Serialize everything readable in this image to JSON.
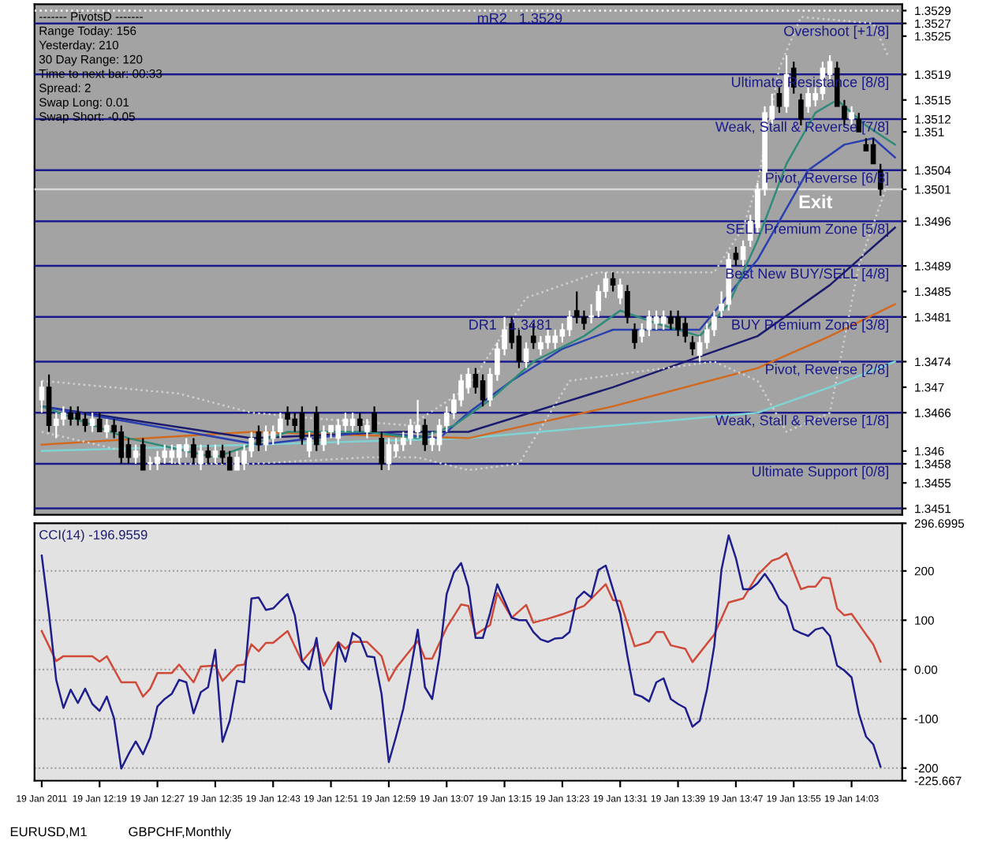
{
  "chart_data": [
    {
      "type": "candlestick",
      "x": [
        "2011-01-19T12:11",
        "2011-01-19T12:12",
        "2011-01-19T12:13",
        "2011-01-19T12:14",
        "2011-01-19T12:15",
        "2011-01-19T12:16",
        "2011-01-19T12:17",
        "2011-01-19T12:18",
        "2011-01-19T12:19",
        "2011-01-19T12:20",
        "2011-01-19T12:21",
        "2011-01-19T12:22",
        "2011-01-19T12:23",
        "2011-01-19T12:24",
        "2011-01-19T12:25",
        "2011-01-19T12:26",
        "2011-01-19T12:27",
        "2011-01-19T12:28",
        "2011-01-19T12:29",
        "2011-01-19T12:30",
        "2011-01-19T12:31",
        "2011-01-19T12:32",
        "2011-01-19T12:33",
        "2011-01-19T12:34",
        "2011-01-19T12:35",
        "2011-01-19T12:36",
        "2011-01-19T12:37",
        "2011-01-19T12:38",
        "2011-01-19T12:39",
        "2011-01-19T12:40",
        "2011-01-19T12:41",
        "2011-01-19T12:42",
        "2011-01-19T12:43",
        "2011-01-19T12:44",
        "2011-01-19T12:45",
        "2011-01-19T12:46",
        "2011-01-19T12:47",
        "2011-01-19T12:48",
        "2011-01-19T12:49",
        "2011-01-19T12:50",
        "2011-01-19T12:51",
        "2011-01-19T12:52",
        "2011-01-19T12:53",
        "2011-01-19T12:54",
        "2011-01-19T12:55",
        "2011-01-19T12:56",
        "2011-01-19T12:57",
        "2011-01-19T12:58",
        "2011-01-19T12:59",
        "2011-01-19T13:00",
        "2011-01-19T13:01",
        "2011-01-19T13:02",
        "2011-01-19T13:03",
        "2011-01-19T13:04",
        "2011-01-19T13:05",
        "2011-01-19T13:06",
        "2011-01-19T13:07",
        "2011-01-19T13:08",
        "2011-01-19T13:09",
        "2011-01-19T13:10",
        "2011-01-19T13:11",
        "2011-01-19T13:12",
        "2011-01-19T13:13",
        "2011-01-19T13:14",
        "2011-01-19T13:15",
        "2011-01-19T13:16",
        "2011-01-19T13:17",
        "2011-01-19T13:18",
        "2011-01-19T13:19",
        "2011-01-19T13:20",
        "2011-01-19T13:21",
        "2011-01-19T13:22",
        "2011-01-19T13:23",
        "2011-01-19T13:24",
        "2011-01-19T13:25",
        "2011-01-19T13:26",
        "2011-01-19T13:27",
        "2011-01-19T13:28",
        "2011-01-19T13:29",
        "2011-01-19T13:30",
        "2011-01-19T13:31",
        "2011-01-19T13:32",
        "2011-01-19T13:33",
        "2011-01-19T13:34",
        "2011-01-19T13:35",
        "2011-01-19T13:36",
        "2011-01-19T13:37",
        "2011-01-19T13:38",
        "2011-01-19T13:39",
        "2011-01-19T13:40",
        "2011-01-19T13:41",
        "2011-01-19T13:42",
        "2011-01-19T13:43",
        "2011-01-19T13:44",
        "2011-01-19T13:45",
        "2011-01-19T13:46",
        "2011-01-19T13:47",
        "2011-01-19T13:48",
        "2011-01-19T13:49",
        "2011-01-19T13:50",
        "2011-01-19T13:51",
        "2011-01-19T13:52",
        "2011-01-19T13:53",
        "2011-01-19T13:54",
        "2011-01-19T13:55",
        "2011-01-19T13:56",
        "2011-01-19T13:57",
        "2011-01-19T13:58",
        "2011-01-19T13:59",
        "2011-01-19T14:00",
        "2011-01-19T14:01",
        "2011-01-19T14:02",
        "2011-01-19T14:03",
        "2011-01-19T14:04",
        "2011-01-19T14:05",
        "2011-01-19T14:06",
        "2011-01-19T14:07"
      ],
      "ohlc": [
        [
          1.3468,
          1.3471,
          1.3466,
          1.347
        ],
        [
          1.347,
          1.3472,
          1.3463,
          1.3464
        ],
        [
          1.3464,
          1.3466,
          1.3462,
          1.3465
        ],
        [
          1.3465,
          1.3467,
          1.3464,
          1.3466
        ],
        [
          1.3466,
          1.3467,
          1.3464,
          1.3465
        ],
        [
          1.3466,
          1.3467,
          1.3464,
          1.3465
        ],
        [
          1.3465,
          1.3466,
          1.3463,
          1.3464
        ],
        [
          1.3464,
          1.3466,
          1.3463,
          1.3465
        ],
        [
          1.3465,
          1.3466,
          1.3463,
          1.3463
        ],
        [
          1.3463,
          1.3465,
          1.3462,
          1.3464
        ],
        [
          1.3464,
          1.3465,
          1.3462,
          1.3463
        ],
        [
          1.3463,
          1.3464,
          1.3458,
          1.3459
        ],
        [
          1.3461,
          1.3462,
          1.3458,
          1.3459
        ],
        [
          1.3459,
          1.3461,
          1.3458,
          1.346
        ],
        [
          1.3461,
          1.3462,
          1.3457,
          1.3457
        ],
        [
          1.3458,
          1.3459,
          1.3457,
          1.3458
        ],
        [
          1.3458,
          1.346,
          1.3457,
          1.3459
        ],
        [
          1.3459,
          1.3461,
          1.3458,
          1.346
        ],
        [
          1.3459,
          1.3461,
          1.3458,
          1.346
        ],
        [
          1.3459,
          1.3461,
          1.3458,
          1.3461
        ],
        [
          1.346,
          1.3462,
          1.3459,
          1.3461
        ],
        [
          1.3461,
          1.3462,
          1.3458,
          1.3459
        ],
        [
          1.3458,
          1.3461,
          1.3457,
          1.346
        ],
        [
          1.346,
          1.3461,
          1.3458,
          1.3459
        ],
        [
          1.3459,
          1.3461,
          1.3458,
          1.346
        ],
        [
          1.346,
          1.3461,
          1.3458,
          1.3459
        ],
        [
          1.3459,
          1.346,
          1.3457,
          1.3457
        ],
        [
          1.3457,
          1.346,
          1.3457,
          1.3459
        ],
        [
          1.3458,
          1.3461,
          1.3457,
          1.346
        ],
        [
          1.346,
          1.3463,
          1.3459,
          1.3462
        ],
        [
          1.3463,
          1.3464,
          1.346,
          1.3461
        ],
        [
          1.3461,
          1.3464,
          1.346,
          1.3463
        ],
        [
          1.3462,
          1.3464,
          1.3461,
          1.3463
        ],
        [
          1.3463,
          1.3466,
          1.3462,
          1.3465
        ],
        [
          1.3466,
          1.3467,
          1.3464,
          1.3465
        ],
        [
          1.3465,
          1.3466,
          1.3463,
          1.3464
        ],
        [
          1.3466,
          1.3467,
          1.3461,
          1.3462
        ],
        [
          1.346,
          1.3463,
          1.3459,
          1.3462
        ],
        [
          1.3466,
          1.3467,
          1.346,
          1.3461
        ],
        [
          1.3461,
          1.3464,
          1.346,
          1.3463
        ],
        [
          1.3463,
          1.3464,
          1.3462,
          1.3464
        ],
        [
          1.3462,
          1.3465,
          1.3461,
          1.3464
        ],
        [
          1.3464,
          1.3466,
          1.3463,
          1.3465
        ],
        [
          1.3464,
          1.3466,
          1.3463,
          1.3465
        ],
        [
          1.3465,
          1.3466,
          1.3463,
          1.3464
        ],
        [
          1.3463,
          1.3465,
          1.3462,
          1.3464
        ],
        [
          1.3466,
          1.3467,
          1.3463,
          1.3463
        ],
        [
          1.3462,
          1.3463,
          1.3457,
          1.3458
        ],
        [
          1.3458,
          1.3462,
          1.3457,
          1.3461
        ],
        [
          1.346,
          1.3462,
          1.3459,
          1.3461
        ],
        [
          1.3461,
          1.3463,
          1.346,
          1.3462
        ],
        [
          1.3462,
          1.3465,
          1.3461,
          1.3464
        ],
        [
          1.3463,
          1.3468,
          1.3462,
          1.3464
        ],
        [
          1.3464,
          1.3465,
          1.346,
          1.3461
        ],
        [
          1.3461,
          1.3463,
          1.346,
          1.3462
        ],
        [
          1.3461,
          1.3465,
          1.346,
          1.3464
        ],
        [
          1.3464,
          1.3467,
          1.3463,
          1.3466
        ],
        [
          1.3466,
          1.3469,
          1.3465,
          1.3468
        ],
        [
          1.3468,
          1.3472,
          1.3467,
          1.3471
        ],
        [
          1.347,
          1.3473,
          1.3469,
          1.3472
        ],
        [
          1.3472,
          1.3473,
          1.3469,
          1.347
        ],
        [
          1.3471,
          1.3472,
          1.3467,
          1.3468
        ],
        [
          1.3468,
          1.3473,
          1.3467,
          1.3472
        ],
        [
          1.3472,
          1.3477,
          1.3471,
          1.3476
        ],
        [
          1.3476,
          1.3481,
          1.3475,
          1.3479
        ],
        [
          1.348,
          1.3481,
          1.3476,
          1.3477
        ],
        [
          1.3478,
          1.3479,
          1.3473,
          1.3474
        ],
        [
          1.3474,
          1.3477,
          1.3473,
          1.3476
        ],
        [
          1.3478,
          1.348,
          1.3476,
          1.3477
        ],
        [
          1.3476,
          1.3478,
          1.3475,
          1.3477
        ],
        [
          1.3477,
          1.3479,
          1.3476,
          1.3478
        ],
        [
          1.3477,
          1.3479,
          1.3476,
          1.3478
        ],
        [
          1.3478,
          1.348,
          1.3477,
          1.3479
        ],
        [
          1.3479,
          1.3482,
          1.3478,
          1.3481
        ],
        [
          1.3482,
          1.3485,
          1.348,
          1.3481
        ],
        [
          1.3481,
          1.3482,
          1.3479,
          1.348
        ],
        [
          1.3481,
          1.3483,
          1.348,
          1.3481
        ],
        [
          1.3482,
          1.3486,
          1.3481,
          1.3485
        ],
        [
          1.3485,
          1.3488,
          1.3484,
          1.3487
        ],
        [
          1.3487,
          1.3488,
          1.3485,
          1.3486
        ],
        [
          1.3484,
          1.3487,
          1.3483,
          1.3486
        ],
        [
          1.3485,
          1.3486,
          1.348,
          1.3481
        ],
        [
          1.3479,
          1.348,
          1.3476,
          1.3477
        ],
        [
          1.3478,
          1.348,
          1.3477,
          1.3479
        ],
        [
          1.3479,
          1.3482,
          1.3478,
          1.3481
        ],
        [
          1.348,
          1.3482,
          1.3479,
          1.3481
        ],
        [
          1.348,
          1.3482,
          1.3479,
          1.3481
        ],
        [
          1.3481,
          1.3482,
          1.3479,
          1.348
        ],
        [
          1.3481,
          1.3482,
          1.3478,
          1.3479
        ],
        [
          1.348,
          1.3481,
          1.3477,
          1.3478
        ],
        [
          1.3477,
          1.3478,
          1.3475,
          1.3476
        ],
        [
          1.3475,
          1.3478,
          1.3474,
          1.3477
        ],
        [
          1.3477,
          1.348,
          1.3476,
          1.3479
        ],
        [
          1.3479,
          1.3482,
          1.3478,
          1.3481
        ],
        [
          1.3482,
          1.3485,
          1.3481,
          1.3483
        ],
        [
          1.3483,
          1.3491,
          1.3482,
          1.349
        ],
        [
          1.3491,
          1.3492,
          1.3489,
          1.349
        ],
        [
          1.349,
          1.3493,
          1.3489,
          1.3492
        ],
        [
          1.3493,
          1.3497,
          1.3492,
          1.3496
        ],
        [
          1.3495,
          1.3502,
          1.3494,
          1.3501
        ],
        [
          1.3501,
          1.3514,
          1.35,
          1.3513
        ],
        [
          1.3512,
          1.3516,
          1.3511,
          1.3514
        ],
        [
          1.3516,
          1.3517,
          1.3513,
          1.3514
        ],
        [
          1.3514,
          1.3522,
          1.3513,
          1.3519
        ],
        [
          1.352,
          1.3521,
          1.3516,
          1.3517
        ],
        [
          1.3515,
          1.3516,
          1.3511,
          1.3512
        ],
        [
          1.3514,
          1.3517,
          1.3513,
          1.3516
        ],
        [
          1.3515,
          1.3517,
          1.3514,
          1.3516
        ],
        [
          1.3516,
          1.3521,
          1.3515,
          1.352
        ],
        [
          1.3519,
          1.3522,
          1.3518,
          1.3521
        ],
        [
          1.352,
          1.3521,
          1.3514,
          1.3514
        ],
        [
          1.3514,
          1.3515,
          1.3511,
          1.3512
        ],
        [
          1.3512,
          1.3514,
          1.3511,
          1.3513
        ],
        [
          1.3512,
          1.3513,
          1.351,
          1.351
        ],
        [
          1.3508,
          1.3509,
          1.3507,
          1.3507
        ],
        [
          1.3508,
          1.3509,
          1.3505,
          1.3505
        ],
        [
          1.3504,
          1.3505,
          1.35,
          1.3501
        ]
      ],
      "colors": [
        "#ffffff",
        "#000000",
        "#ffffff",
        "#ffffff",
        "#000000",
        "#000000",
        "#000000",
        "#ffffff",
        "#000000",
        "#ffffff",
        "#000000",
        "#000000",
        "#000000",
        "#ffffff",
        "#000000",
        "#ffffff",
        "#ffffff",
        "#ffffff",
        "#ffffff",
        "#ffffff",
        "#ffffff",
        "#000000",
        "#ffffff",
        "#000000",
        "#ffffff",
        "#000000",
        "#000000",
        "#ffffff",
        "#ffffff",
        "#ffffff",
        "#000000",
        "#ffffff",
        "#ffffff",
        "#ffffff",
        "#000000",
        "#000000",
        "#000000",
        "#ffffff",
        "#000000",
        "#ffffff",
        "#ffffff",
        "#ffffff",
        "#ffffff",
        "#ffffff",
        "#000000",
        "#ffffff",
        "#000000",
        "#000000",
        "#ffffff",
        "#ffffff",
        "#ffffff",
        "#ffffff",
        "#ffffff",
        "#000000",
        "#ffffff",
        "#ffffff",
        "#ffffff",
        "#ffffff",
        "#ffffff",
        "#ffffff",
        "#000000",
        "#000000",
        "#ffffff",
        "#ffffff",
        "#ffffff",
        "#000000",
        "#000000",
        "#ffffff",
        "#000000",
        "#ffffff",
        "#ffffff",
        "#ffffff",
        "#ffffff",
        "#ffffff",
        "#000000",
        "#000000",
        "#ffffff",
        "#ffffff",
        "#ffffff",
        "#000000",
        "#ffffff",
        "#000000",
        "#000000",
        "#ffffff",
        "#ffffff",
        "#ffffff",
        "#ffffff",
        "#000000",
        "#000000",
        "#000000",
        "#000000",
        "#ffffff",
        "#ffffff",
        "#ffffff",
        "#ffffff",
        "#ffffff",
        "#000000",
        "#ffffff",
        "#ffffff",
        "#ffffff",
        "#ffffff",
        "#ffffff",
        "#000000",
        "#ffffff",
        "#000000",
        "#000000",
        "#ffffff",
        "#ffffff",
        "#ffffff",
        "#ffffff",
        "#000000",
        "#000000",
        "#ffffff",
        "#000000",
        "#000000",
        "#000000",
        "#000000"
      ],
      "series": [
        {
          "type": "line",
          "color": "#7fd3d3",
          "line_style": "solid",
          "x": [
            "2011-01-19T12:11",
            "2011-01-19T13:10",
            "2011-01-19T13:30",
            "2011-01-19T13:50",
            "2011-01-19T14:00",
            "2011-01-19T14:09"
          ],
          "values": [
            1.346,
            1.3462,
            1.3464,
            1.3466,
            1.347,
            1.3474
          ]
        },
        {
          "type": "line",
          "color": "#d2691e",
          "line_style": "solid",
          "x": [
            "2011-01-19T12:11",
            "2011-01-19T12:40",
            "2011-01-19T13:10",
            "2011-01-19T13:30",
            "2011-01-19T13:50",
            "2011-01-19T14:00",
            "2011-01-19T14:09"
          ],
          "values": [
            1.3461,
            1.3463,
            1.3462,
            1.3467,
            1.3473,
            1.3478,
            1.3483
          ]
        },
        {
          "type": "line",
          "color": "#1a1a6e",
          "line_style": "solid",
          "x": [
            "2011-01-19T12:11",
            "2011-01-19T12:40",
            "2011-01-19T13:00",
            "2011-01-19T13:10",
            "2011-01-19T13:30",
            "2011-01-19T13:50",
            "2011-01-19T14:00",
            "2011-01-19T14:09"
          ],
          "values": [
            1.3467,
            1.3462,
            1.3463,
            1.3463,
            1.347,
            1.3478,
            1.3486,
            1.3495
          ]
        },
        {
          "type": "line",
          "color": "#2a3fb0",
          "line_style": "solid",
          "x": [
            "2011-01-19T12:11",
            "2011-01-19T12:26",
            "2011-01-19T12:41",
            "2011-01-19T12:56",
            "2011-01-19T13:06",
            "2011-01-19T13:10",
            "2011-01-19T13:16",
            "2011-01-19T13:23",
            "2011-01-19T13:30",
            "2011-01-19T13:42",
            "2011-01-19T13:50",
            "2011-01-19T13:57",
            "2011-01-19T14:02",
            "2011-01-19T14:06",
            "2011-01-19T14:09"
          ],
          "values": [
            1.3467,
            1.3464,
            1.3461,
            1.3463,
            1.3462,
            1.3466,
            1.3471,
            1.3476,
            1.3479,
            1.3479,
            1.349,
            1.3504,
            1.3508,
            1.3509,
            1.3506
          ]
        },
        {
          "type": "line",
          "color": "#2e8b7a",
          "line_style": "solid",
          "x": [
            "2011-01-19T12:11",
            "2011-01-19T12:23",
            "2011-01-19T12:35",
            "2011-01-19T12:45",
            "2011-01-19T12:56",
            "2011-01-19T13:03",
            "2011-01-19T13:08",
            "2011-01-19T13:13",
            "2011-01-19T13:19",
            "2011-01-19T13:26",
            "2011-01-19T13:31",
            "2011-01-19T13:36",
            "2011-01-19T13:42",
            "2011-01-19T13:46",
            "2011-01-19T13:50",
            "2011-01-19T13:54",
            "2011-01-19T13:58",
            "2011-01-19T14:01",
            "2011-01-19T14:05",
            "2011-01-19T14:09"
          ],
          "values": [
            1.3467,
            1.3462,
            1.3459,
            1.3463,
            1.3463,
            1.3462,
            1.3464,
            1.3468,
            1.3474,
            1.3478,
            1.3482,
            1.348,
            1.3478,
            1.3483,
            1.3493,
            1.3505,
            1.3513,
            1.3515,
            1.3511,
            1.3508
          ]
        },
        {
          "type": "line",
          "color": "#d0d0d0",
          "line_style": "dotted",
          "x": [
            "2011-01-19T12:11",
            "2011-01-19T12:30",
            "2011-01-19T12:40",
            "2011-01-19T12:50",
            "2011-01-19T13:02",
            "2011-01-19T13:10",
            "2011-01-19T13:18",
            "2011-01-19T13:28",
            "2011-01-19T13:44",
            "2011-01-19T13:48",
            "2011-01-19T13:50",
            "2011-01-19T13:53",
            "2011-01-19T13:56",
            "2011-01-19T14:06",
            "2011-01-19T14:08"
          ],
          "values": [
            1.3471,
            1.3469,
            1.3466,
            1.3465,
            1.3464,
            1.347,
            1.3484,
            1.3488,
            1.3488,
            1.3495,
            1.3502,
            1.352,
            1.3528,
            1.3527,
            1.3522
          ]
        },
        {
          "type": "line",
          "color": "#d0d0d0",
          "line_style": "dotted",
          "x": [
            "2011-01-19T12:11",
            "2011-01-19T12:30",
            "2011-01-19T12:40",
            "2011-01-19T12:56",
            "2011-01-19T13:03",
            "2011-01-19T13:10",
            "2011-01-19T13:17",
            "2011-01-19T13:24",
            "2011-01-19T13:44",
            "2011-01-19T13:50",
            "2011-01-19T13:54",
            "2011-01-19T14:00",
            "2011-01-19T14:04",
            "2011-01-19T14:08"
          ],
          "values": [
            1.3463,
            1.3458,
            1.3458,
            1.3459,
            1.3459,
            1.3457,
            1.3458,
            1.3471,
            1.3474,
            1.3471,
            1.3463,
            1.3466,
            1.3489,
            1.3502
          ]
        }
      ],
      "ref_lines": [
        {
          "axis": "y",
          "value": 1.3529,
          "label": "mR2   1.3529",
          "color": "#ffffff",
          "line_style": "dotted"
        },
        {
          "axis": "y",
          "value": 1.3527,
          "label": "Overshoot [+1/8]",
          "color": "#1a1a8c",
          "line_style": "solid"
        },
        {
          "axis": "y",
          "value": 1.3519,
          "label": "Ultimate Resistance [8/8]",
          "color": "#1a1a8c",
          "line_style": "solid"
        },
        {
          "axis": "y",
          "value": 1.3512,
          "label": "Weak, Stall & Reverse [7/8]",
          "color": "#1a1a8c",
          "line_style": "solid"
        },
        {
          "axis": "y",
          "value": 1.3504,
          "label": "Pivot, Reverse [6/8]",
          "color": "#1a1a8c",
          "line_style": "solid"
        },
        {
          "axis": "y",
          "value": 1.3501,
          "label": null,
          "color": "#d8d8d8",
          "line_style": "solid"
        },
        {
          "axis": "y",
          "value": 1.3496,
          "label": "SELL Premium Zone [5/8]",
          "color": "#1a1a8c",
          "line_style": "solid"
        },
        {
          "axis": "y",
          "value": 1.3489,
          "label": "Best New BUY/SELL [4/8]",
          "color": "#1a1a8c",
          "line_style": "solid"
        },
        {
          "axis": "y",
          "value": 1.3481,
          "label": "BUY Premium Zone [3/8]",
          "color": "#1a1a8c",
          "line_style": "solid"
        },
        {
          "axis": "y",
          "value": 1.3474,
          "label": "Pivot, Reverse [2/8]",
          "color": "#1a1a8c",
          "line_style": "solid"
        },
        {
          "axis": "y",
          "value": 1.3466,
          "label": "Weak, Stall & Reverse [1/8]",
          "color": "#1a1a8c",
          "line_style": "solid"
        },
        {
          "axis": "y",
          "value": 1.3458,
          "label": "Ultimate Support [0/8]",
          "color": "#1a1a8c",
          "line_style": "solid"
        },
        {
          "axis": "y",
          "value": 1.3451,
          "label": null,
          "color": "#1a1a8c",
          "line_style": "solid"
        }
      ],
      "annotations": [
        {
          "text": "DR1   1.3481",
          "x": "2011-01-19T13:10",
          "y": 1.3481
        },
        "------- PivotsD -------",
        "Range Today: 156",
        "Yesterday: 210",
        "30 Day Range: 120",
        "Time to next bar: 00:33",
        "Spread: 2",
        "Swap Long: 0.01",
        "Swap Short: -0.05",
        "Exit"
      ],
      "xlim": [
        "2011-01-19T12:10",
        "2011-01-19T14:10"
      ],
      "ylim": [
        1.345,
        1.353
      ],
      "yticks": [
        1.3529,
        1.3527,
        1.3525,
        1.3519,
        1.3515,
        1.3512,
        1.351,
        1.3504,
        1.3501,
        1.3496,
        1.3489,
        1.3485,
        1.3481,
        1.3474,
        1.347,
        1.3466,
        1.346,
        1.3458,
        1.3455,
        1.3451
      ],
      "tick_labels": "y"
    },
    {
      "type": "line",
      "title": "CCI(14) -196.9559",
      "x": [
        "2011-01-19T12:11",
        "2011-01-19T12:12",
        "2011-01-19T12:13",
        "2011-01-19T12:14",
        "2011-01-19T12:15",
        "2011-01-19T12:16",
        "2011-01-19T12:17",
        "2011-01-19T12:18",
        "2011-01-19T12:19",
        "2011-01-19T12:20",
        "2011-01-19T12:21",
        "2011-01-19T12:22",
        "2011-01-19T12:23",
        "2011-01-19T12:24",
        "2011-01-19T12:25",
        "2011-01-19T12:26",
        "2011-01-19T12:27",
        "2011-01-19T12:28",
        "2011-01-19T12:29",
        "2011-01-19T12:30",
        "2011-01-19T12:31",
        "2011-01-19T12:32",
        "2011-01-19T12:33",
        "2011-01-19T12:34",
        "2011-01-19T12:35",
        "2011-01-19T12:36",
        "2011-01-19T12:37",
        "2011-01-19T12:38",
        "2011-01-19T12:39",
        "2011-01-19T12:40",
        "2011-01-19T12:41",
        "2011-01-19T12:42",
        "2011-01-19T12:43",
        "2011-01-19T12:44",
        "2011-01-19T12:45",
        "2011-01-19T12:46",
        "2011-01-19T12:47",
        "2011-01-19T12:48",
        "2011-01-19T12:49",
        "2011-01-19T12:50",
        "2011-01-19T12:51",
        "2011-01-19T12:52",
        "2011-01-19T12:53",
        "2011-01-19T12:54",
        "2011-01-19T12:55",
        "2011-01-19T12:56",
        "2011-01-19T12:57",
        "2011-01-19T12:58",
        "2011-01-19T12:59",
        "2011-01-19T13:00",
        "2011-01-19T13:01",
        "2011-01-19T13:02",
        "2011-01-19T13:03",
        "2011-01-19T13:04",
        "2011-01-19T13:05",
        "2011-01-19T13:06",
        "2011-01-19T13:07",
        "2011-01-19T13:08",
        "2011-01-19T13:09",
        "2011-01-19T13:10",
        "2011-01-19T13:11",
        "2011-01-19T13:12",
        "2011-01-19T13:13",
        "2011-01-19T13:14",
        "2011-01-19T13:15",
        "2011-01-19T13:16",
        "2011-01-19T13:17",
        "2011-01-19T13:18",
        "2011-01-19T13:19",
        "2011-01-19T13:20",
        "2011-01-19T13:21",
        "2011-01-19T13:22",
        "2011-01-19T13:23",
        "2011-01-19T13:24",
        "2011-01-19T13:25",
        "2011-01-19T13:26",
        "2011-01-19T13:27",
        "2011-01-19T13:28",
        "2011-01-19T13:29",
        "2011-01-19T13:30",
        "2011-01-19T13:31",
        "2011-01-19T13:32",
        "2011-01-19T13:33",
        "2011-01-19T13:34",
        "2011-01-19T13:35",
        "2011-01-19T13:36",
        "2011-01-19T13:37",
        "2011-01-19T13:38",
        "2011-01-19T13:39",
        "2011-01-19T13:40",
        "2011-01-19T13:41",
        "2011-01-19T13:42",
        "2011-01-19T13:43",
        "2011-01-19T13:44",
        "2011-01-19T13:45",
        "2011-01-19T13:46",
        "2011-01-19T13:47",
        "2011-01-19T13:48",
        "2011-01-19T13:49",
        "2011-01-19T13:50",
        "2011-01-19T13:51",
        "2011-01-19T13:52",
        "2011-01-19T13:53",
        "2011-01-19T13:54",
        "2011-01-19T13:55",
        "2011-01-19T13:56",
        "2011-01-19T13:57",
        "2011-01-19T13:58",
        "2011-01-19T13:59",
        "2011-01-19T14:00",
        "2011-01-19T14:01",
        "2011-01-19T14:02",
        "2011-01-19T14:03",
        "2011-01-19T14:04",
        "2011-01-19T14:05",
        "2011-01-19T14:06",
        "2011-01-19T14:07"
      ],
      "series": [
        {
          "color": "#d04a3a",
          "x": [
            "2011-01-19T12:11",
            "2011-01-19T12:13",
            "2011-01-19T12:14",
            "2011-01-19T12:18",
            "2011-01-19T12:19",
            "2011-01-19T12:20",
            "2011-01-19T12:22",
            "2011-01-19T12:24",
            "2011-01-19T12:25",
            "2011-01-19T12:26",
            "2011-01-19T12:27",
            "2011-01-19T12:29",
            "2011-01-19T12:30",
            "2011-01-19T12:32",
            "2011-01-19T12:33",
            "2011-01-19T12:35",
            "2011-01-19T12:36",
            "2011-01-19T12:38",
            "2011-01-19T12:39",
            "2011-01-19T12:40",
            "2011-01-19T12:41",
            "2011-01-19T12:42",
            "2011-01-19T12:43",
            "2011-01-19T12:45",
            "2011-01-19T12:47",
            "2011-01-19T12:49",
            "2011-01-19T12:50",
            "2011-01-19T12:52",
            "2011-01-19T12:53",
            "2011-01-19T12:54",
            "2011-01-19T12:56",
            "2011-01-19T12:58",
            "2011-01-19T12:59",
            "2011-01-19T13:00",
            "2011-01-19T13:03",
            "2011-01-19T13:04",
            "2011-01-19T13:05",
            "2011-01-19T13:07",
            "2011-01-19T13:09",
            "2011-01-19T13:10",
            "2011-01-19T13:11",
            "2011-01-19T13:13",
            "2011-01-19T13:14",
            "2011-01-19T13:16",
            "2011-01-19T13:18",
            "2011-01-19T13:19",
            "2011-01-19T13:21",
            "2011-01-19T13:23",
            "2011-01-19T13:26",
            "2011-01-19T13:29",
            "2011-01-19T13:30",
            "2011-01-19T13:31",
            "2011-01-19T13:33",
            "2011-01-19T13:35",
            "2011-01-19T13:36",
            "2011-01-19T13:37",
            "2011-01-19T13:38",
            "2011-01-19T13:40",
            "2011-01-19T13:41",
            "2011-01-19T13:44",
            "2011-01-19T13:46",
            "2011-01-19T13:48",
            "2011-01-19T13:50",
            "2011-01-19T13:52",
            "2011-01-19T13:53",
            "2011-01-19T13:54",
            "2011-01-19T13:56",
            "2011-01-19T13:57",
            "2011-01-19T13:58",
            "2011-01-19T13:59",
            "2011-01-19T14:00",
            "2011-01-19T14:01",
            "2011-01-19T14:02",
            "2011-01-19T14:03",
            "2011-01-19T14:05",
            "2011-01-19T14:06",
            "2011-01-19T14:07"
          ],
          "values": [
            78,
            17,
            27,
            27,
            16,
            27,
            -26,
            -26,
            -55,
            -39,
            -7,
            -7,
            10,
            -26,
            6,
            8,
            -23,
            8,
            10,
            51,
            37,
            54,
            54,
            78,
            16,
            51,
            8,
            56,
            42,
            56,
            56,
            27,
            -23,
            3,
            58,
            22,
            22,
            85,
            132,
            129,
            71,
            90,
            155,
            105,
            131,
            95,
            103,
            112,
            129,
            173,
            141,
            139,
            47,
            56,
            76,
            76,
            49,
            42,
            15,
            71,
            136,
            144,
            192,
            221,
            226,
            236,
            163,
            168,
            168,
            187,
            185,
            124,
            110,
            113,
            71,
            51,
            16
          ]
        },
        {
          "color": "#1e1e8c",
          "values": [
            231,
            114,
            -21,
            -78,
            -41,
            -68,
            -39,
            -70,
            -84,
            -55,
            -99,
            -201,
            -172,
            -146,
            -172,
            -138,
            -75,
            -60,
            -49,
            -21,
            -26,
            -89,
            -46,
            -36,
            40,
            -147,
            -104,
            -23,
            -26,
            144,
            146,
            121,
            124,
            139,
            153,
            110,
            17,
            0,
            64,
            -41,
            -80,
            54,
            16,
            74,
            64,
            27,
            25,
            -50,
            -188,
            -136,
            -80,
            -2,
            81,
            -36,
            -60,
            27,
            153,
            197,
            216,
            168,
            64,
            64,
            114,
            173,
            139,
            105,
            100,
            100,
            76,
            61,
            56,
            63,
            64,
            76,
            144,
            158,
            146,
            202,
            211,
            163,
            114,
            27,
            -50,
            -55,
            -65,
            -26,
            -18,
            -60,
            -70,
            -78,
            -116,
            -104,
            -41,
            47,
            202,
            272,
            226,
            163,
            163,
            175,
            194,
            173,
            144,
            129,
            81,
            74,
            68,
            81,
            85,
            68,
            8,
            -2,
            -16,
            -89,
            -136,
            -152,
            -197
          ]
        }
      ],
      "xlim": [
        "2011-01-19T12:10",
        "2011-01-19T14:10"
      ],
      "xticks": [
        {
          "value": "2011-01-19T12:11",
          "label": "19 Jan 2011"
        },
        {
          "value": "2011-01-19T12:19",
          "label": "19 Jan 12:19"
        },
        {
          "value": "2011-01-19T12:27",
          "label": "19 Jan 12:27"
        },
        {
          "value": "2011-01-19T12:35",
          "label": "19 Jan 12:35"
        },
        {
          "value": "2011-01-19T12:43",
          "label": "19 Jan 12:43"
        },
        {
          "value": "2011-01-19T12:51",
          "label": "19 Jan 12:51"
        },
        {
          "value": "2011-01-19T12:59",
          "label": "19 Jan 12:59"
        },
        {
          "value": "2011-01-19T13:07",
          "label": "19 Jan 13:07"
        },
        {
          "value": "2011-01-19T13:15",
          "label": "19 Jan 13:15"
        },
        {
          "value": "2011-01-19T13:23",
          "label": "19 Jan 13:23"
        },
        {
          "value": "2011-01-19T13:31",
          "label": "19 Jan 13:31"
        },
        {
          "value": "2011-01-19T13:39",
          "label": "19 Jan 13:39"
        },
        {
          "value": "2011-01-19T13:47",
          "label": "19 Jan 13:47"
        },
        {
          "value": "2011-01-19T13:55",
          "label": "19 Jan 13:55"
        },
        {
          "value": "2011-01-19T14:03",
          "label": "19 Jan 14:03"
        }
      ],
      "ylim": [
        -225.667,
        296.6995
      ],
      "yticks": [
        {
          "value": 296.6995,
          "label": "296.6995"
        },
        200,
        100,
        {
          "value": 0,
          "label": "0.00"
        },
        -100,
        -200,
        {
          "value": -225.667,
          "label": "-225.667"
        }
      ],
      "grid": "y",
      "annotations": [
        "EURUSD,M1",
        "GBPCHF,Monthly"
      ]
    }
  ]
}
